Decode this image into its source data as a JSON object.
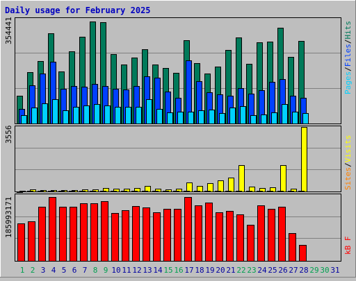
{
  "title": "Daily usage for February 2025",
  "colors": {
    "background": "#c0c0c0",
    "panel": "#bebebe",
    "title": "#0000c0",
    "hits": "#007a5a",
    "files": "#0040ff",
    "pages": "#00d0ff",
    "visits": "#ffff00",
    "sites": "#ff8000",
    "kbytes": "#ff0000",
    "weekend_day": "#00a050",
    "weekday": "#0000a0",
    "future_day": "#00a050"
  },
  "panel_labels": {
    "top": {
      "pages": "Pages",
      "files": "Files",
      "hits": "Hits",
      "sep": "/"
    },
    "middle": {
      "sites": "Sites",
      "visits": "Visits",
      "sep": "/"
    },
    "bottom": {
      "kbytes": "kB F"
    }
  },
  "max_labels": {
    "top": "354441",
    "middle": "3556",
    "bottom": "185993171"
  },
  "chart_data": [
    {
      "type": "bar",
      "name": "hits-files-pages",
      "categories": [
        "1",
        "2",
        "3",
        "4",
        "5",
        "6",
        "7",
        "8",
        "9",
        "10",
        "11",
        "12",
        "13",
        "14",
        "15",
        "16",
        "17",
        "18",
        "19",
        "20",
        "21",
        "22",
        "23",
        "24",
        "25",
        "26",
        "27",
        "28"
      ],
      "ylim": [
        0,
        354441
      ],
      "series": [
        {
          "name": "Hits",
          "values": [
            94000,
            174000,
            211000,
            304000,
            176000,
            243000,
            294000,
            344000,
            342000,
            234000,
            200000,
            222000,
            250000,
            200000,
            187000,
            171000,
            282000,
            205000,
            168000,
            192000,
            249000,
            290000,
            202000,
            274000,
            277000,
            324000,
            226000,
            280000
          ]
        },
        {
          "name": "Files",
          "values": [
            50000,
            130000,
            170000,
            209000,
            118000,
            127000,
            125000,
            134000,
            127000,
            118000,
            114000,
            126000,
            159000,
            155000,
            109000,
            86000,
            213000,
            144000,
            105000,
            99000,
            95000,
            120000,
            102000,
            113000,
            142000,
            150000,
            94000,
            86000
          ]
        },
        {
          "name": "Pages",
          "values": [
            29000,
            55000,
            67000,
            82000,
            44000,
            57000,
            62000,
            65000,
            60000,
            56000,
            57000,
            57000,
            83000,
            49000,
            38000,
            41000,
            39000,
            45000,
            46000,
            35000,
            54000,
            58000,
            28000,
            31000,
            38000,
            66000,
            40000,
            35000
          ]
        }
      ]
    },
    {
      "type": "bar",
      "name": "visits-sites",
      "categories": [
        "1",
        "2",
        "3",
        "4",
        "5",
        "6",
        "7",
        "8",
        "9",
        "10",
        "11",
        "12",
        "13",
        "14",
        "15",
        "16",
        "17",
        "18",
        "19",
        "20",
        "21",
        "22",
        "23",
        "24",
        "25",
        "26",
        "27",
        "28"
      ],
      "ylim": [
        0,
        3556
      ],
      "series": [
        {
          "name": "Visits",
          "values": [
            50,
            100,
            80,
            80,
            90,
            80,
            100,
            130,
            180,
            150,
            170,
            180,
            290,
            150,
            100,
            150,
            500,
            300,
            450,
            620,
            750,
            1450,
            250,
            200,
            220,
            1450,
            160,
            3556
          ]
        },
        {
          "name": "Sites",
          "values": [
            0,
            10,
            10,
            10,
            10,
            10,
            10,
            10,
            20,
            20,
            20,
            20,
            20,
            20,
            10,
            20,
            30,
            30,
            30,
            30,
            30,
            40,
            20,
            20,
            20,
            40,
            20,
            40
          ]
        }
      ]
    },
    {
      "type": "bar",
      "name": "kbytes",
      "categories": [
        "1",
        "2",
        "3",
        "4",
        "5",
        "6",
        "7",
        "8",
        "9",
        "10",
        "11",
        "12",
        "13",
        "14",
        "15",
        "16",
        "17",
        "18",
        "19",
        "20",
        "21",
        "22",
        "23",
        "24",
        "25",
        "26",
        "27",
        "28"
      ],
      "ylim": [
        0,
        185993171
      ],
      "series": [
        {
          "name": "kB F",
          "values": [
            105000000,
            112000000,
            152000000,
            180000000,
            152000000,
            153000000,
            162000000,
            162000000,
            168000000,
            135000000,
            143000000,
            155000000,
            150000000,
            137000000,
            147000000,
            147000000,
            181000000,
            157000000,
            164000000,
            138000000,
            140000000,
            132000000,
            101000000,
            157000000,
            147000000,
            153000000,
            79000000,
            45000000
          ]
        }
      ]
    }
  ],
  "x_axis": {
    "days": [
      "1",
      "2",
      "3",
      "4",
      "5",
      "6",
      "7",
      "8",
      "9",
      "10",
      "11",
      "12",
      "13",
      "14",
      "15",
      "16",
      "17",
      "18",
      "19",
      "20",
      "21",
      "22",
      "23",
      "24",
      "25",
      "26",
      "27",
      "28",
      "29",
      "30",
      "31"
    ],
    "weekend_days": [
      "1",
      "2",
      "8",
      "9",
      "15",
      "16",
      "22",
      "23",
      "29",
      "30"
    ]
  }
}
